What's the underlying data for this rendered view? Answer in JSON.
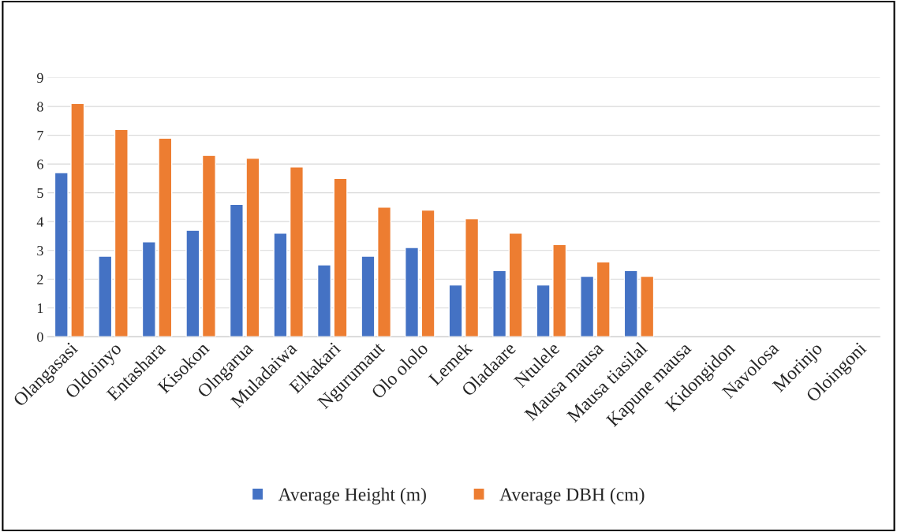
{
  "chart_data": {
    "type": "bar",
    "categories": [
      "Olangasasi",
      "Oldoinyo",
      "Entashara",
      "Kisokon",
      "Olngarua",
      "Muladaiwa",
      "Elkakari",
      "Ngurumaut",
      "Olo ololo",
      "Lemek",
      "Oladaare",
      "Ntulele",
      "Mausa mausa",
      "Mausa tiasilal",
      "Kapune mausa",
      "Kidongidon",
      "Navolosa",
      "Morinjo",
      "Oloingoni"
    ],
    "series": [
      {
        "name": "Average Height (m)",
        "color": "#4472c4",
        "values": [
          5.7,
          2.8,
          3.3,
          3.7,
          4.6,
          3.6,
          2.5,
          2.8,
          3.1,
          1.8,
          2.3,
          1.8,
          2.1,
          2.3,
          null,
          null,
          null,
          null,
          null
        ]
      },
      {
        "name": "Average DBH (cm)",
        "color": "#ed7d31",
        "values": [
          8.1,
          7.2,
          6.9,
          6.3,
          6.2,
          5.9,
          5.5,
          4.5,
          4.4,
          4.1,
          3.6,
          3.2,
          2.6,
          2.1,
          null,
          null,
          null,
          null,
          null
        ]
      }
    ],
    "ylim": [
      0,
      9
    ],
    "yticks": [
      0,
      1,
      2,
      3,
      4,
      5,
      6,
      7,
      8,
      9
    ],
    "grid": "y",
    "legend": "bottom"
  }
}
